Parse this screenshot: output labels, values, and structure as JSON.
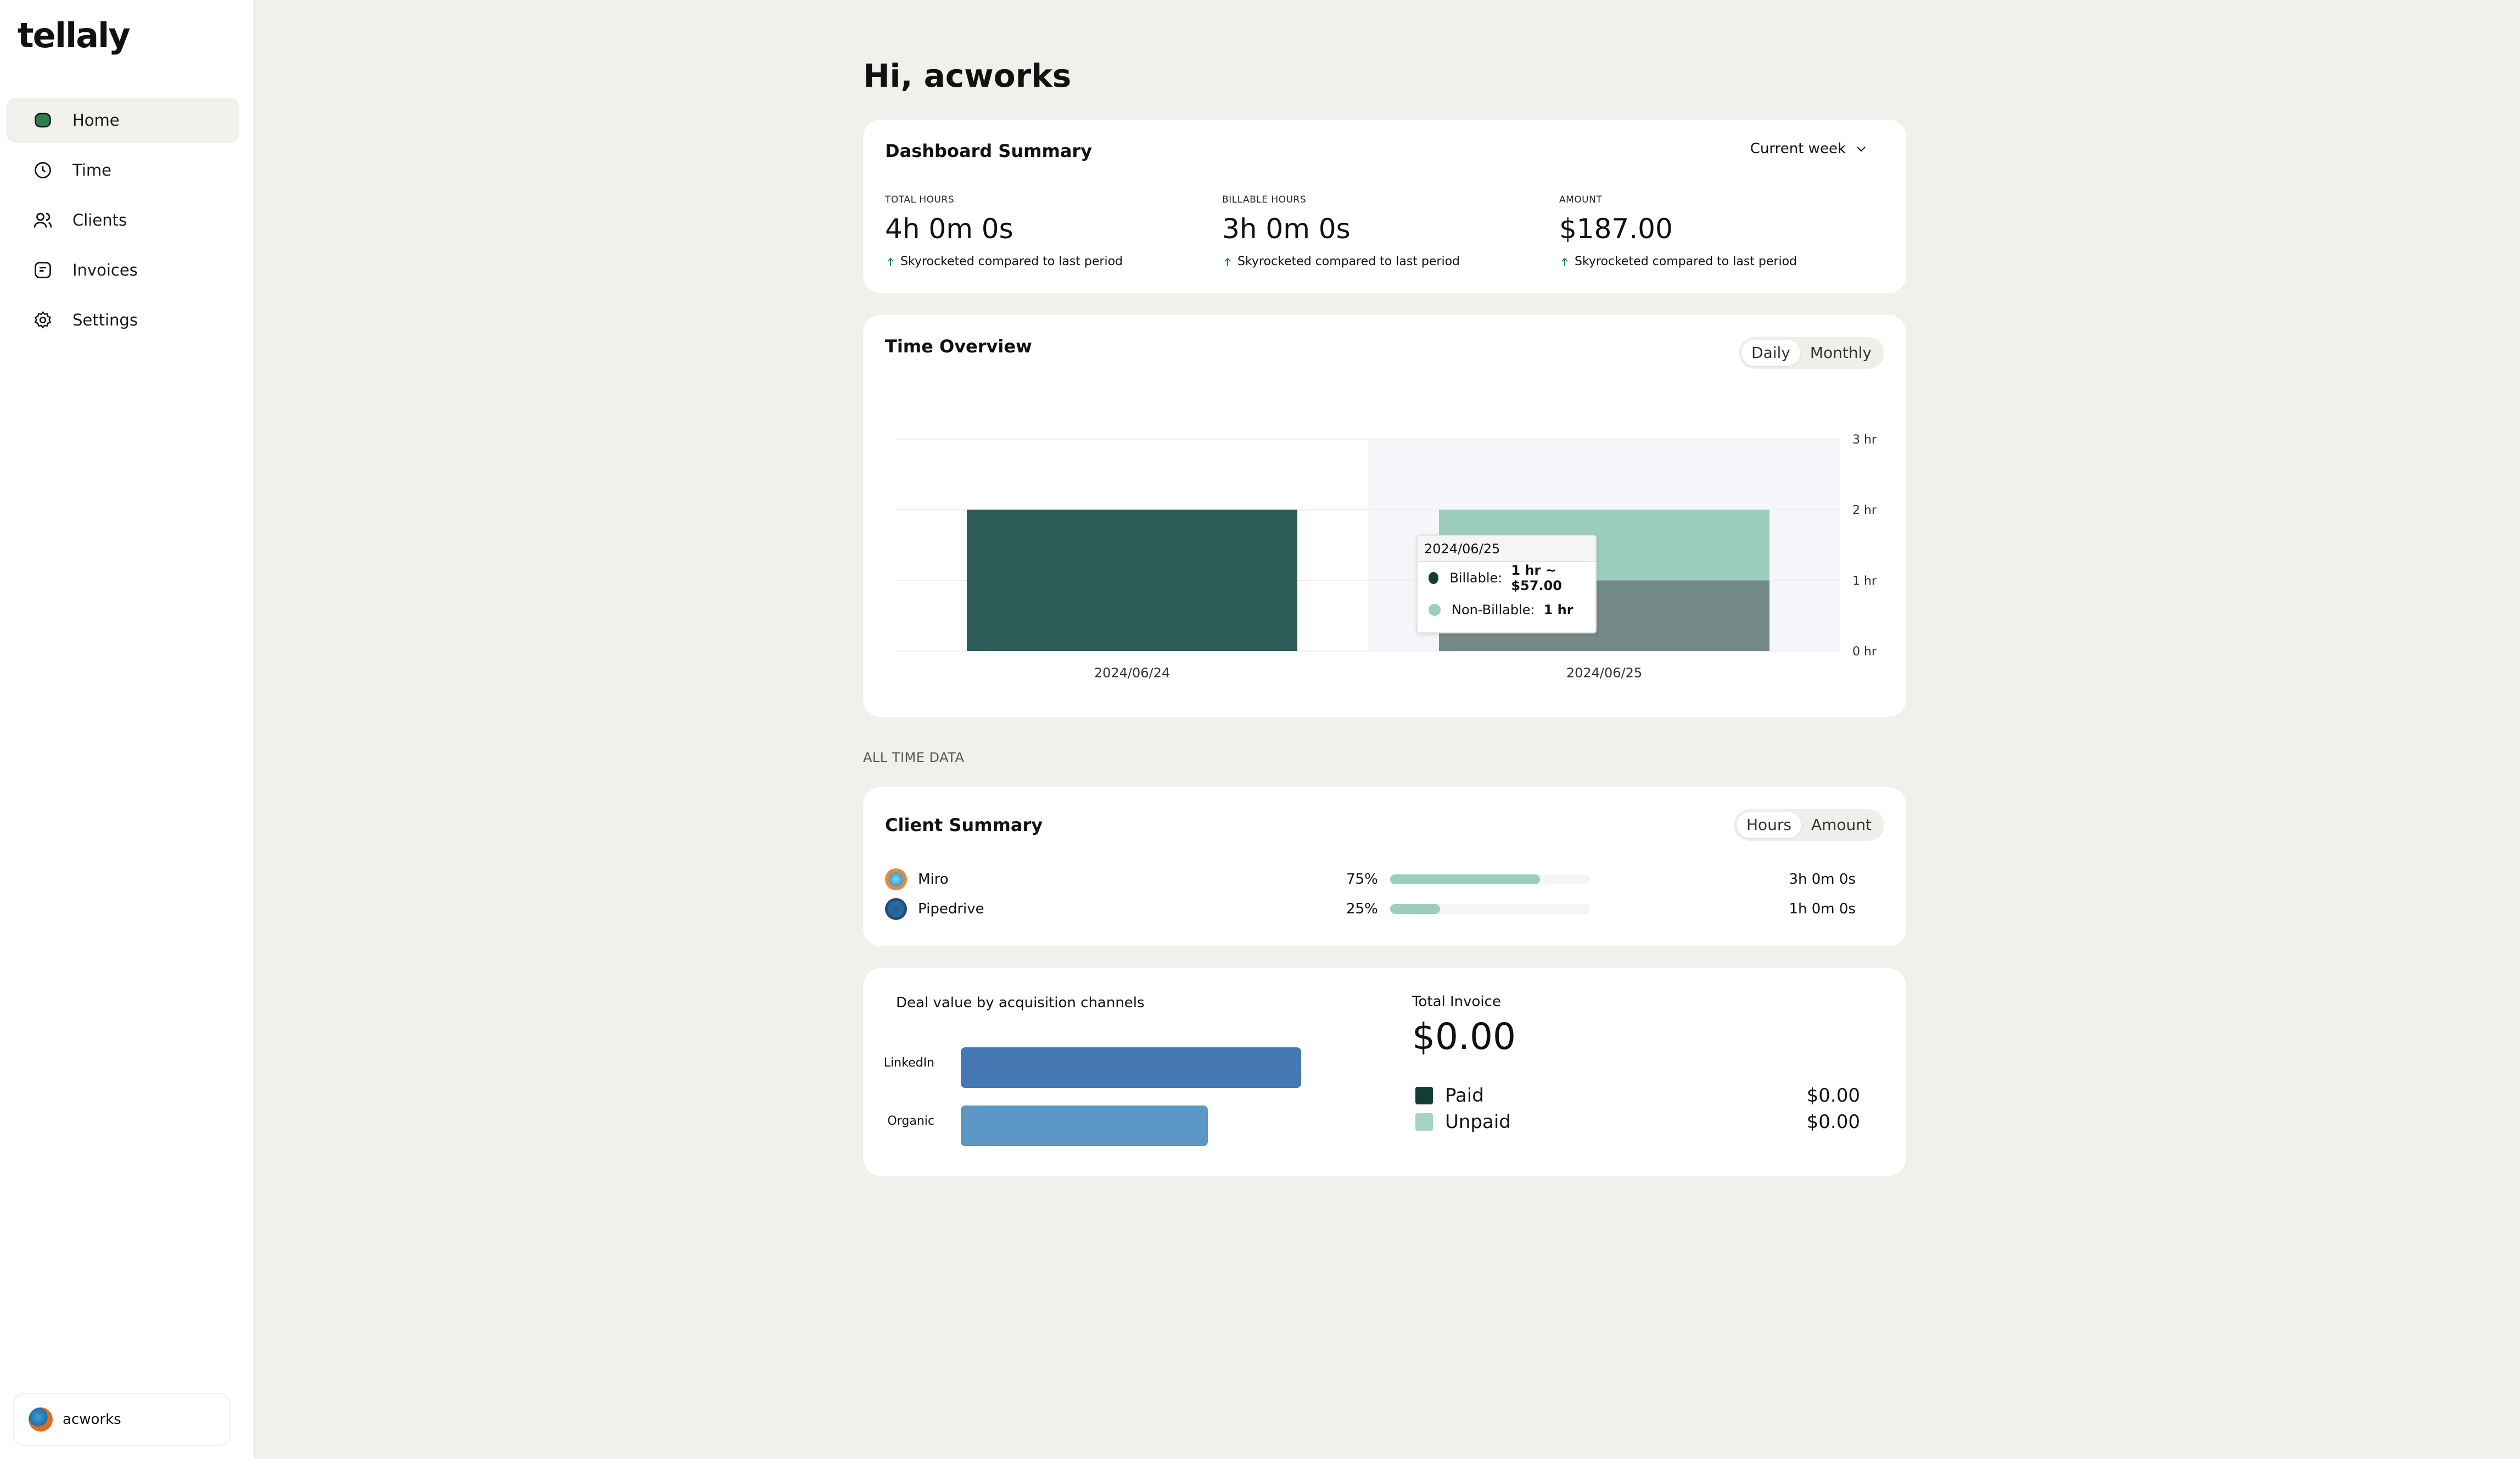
{
  "app": {
    "logo": "tellaly"
  },
  "sidebar": {
    "items": [
      {
        "label": "Home",
        "icon": "home-icon",
        "active": true
      },
      {
        "label": "Time",
        "icon": "clock-icon"
      },
      {
        "label": "Clients",
        "icon": "users-icon"
      },
      {
        "label": "Invoices",
        "icon": "invoice-icon"
      },
      {
        "label": "Settings",
        "icon": "gear-icon"
      }
    ],
    "user": {
      "name": "acworks"
    }
  },
  "greeting": "Hi, acworks",
  "summary": {
    "title": "Dashboard Summary",
    "period": "Current week",
    "stats": [
      {
        "label": "TOTAL HOURS",
        "value": "4h 0m 0s",
        "trend": "Skyrocketed compared to last period"
      },
      {
        "label": "BILLABLE HOURS",
        "value": "3h 0m 0s",
        "trend": "Skyrocketed compared to last period"
      },
      {
        "label": "AMOUNT",
        "value": "$187.00",
        "trend": "Skyrocketed compared to last period"
      }
    ],
    "trend_color": "#1a8a5a"
  },
  "overview": {
    "title": "Time Overview",
    "toggle": {
      "options": [
        "Daily",
        "Monthly"
      ],
      "selected": "Daily"
    },
    "tooltip": {
      "date": "2024/06/25",
      "billable_label": "Billable:",
      "billable_value": "1 hr ~ $57.00",
      "nonbillable_label": "Non-Billable:",
      "nonbillable_value": "1 hr"
    }
  },
  "chart_data": {
    "type": "bar",
    "stacked": true,
    "categories": [
      "2024/06/24",
      "2024/06/25"
    ],
    "series": [
      {
        "name": "Billable",
        "values": [
          2,
          1
        ],
        "color": "#2e5c59"
      },
      {
        "name": "Non-Billable",
        "values": [
          0,
          1
        ],
        "color": "#9dcdbd"
      }
    ],
    "ylim": [
      0,
      3
    ],
    "yticks": [
      "0 hr",
      "1 hr",
      "2 hr",
      "3 hr"
    ],
    "y_axis_position": "right",
    "highlighted_category": "2024/06/25",
    "grid": true
  },
  "all_time_label": "ALL TIME DATA",
  "client_summary": {
    "title": "Client Summary",
    "toggle": {
      "options": [
        "Hours",
        "Amount"
      ],
      "selected": "Hours"
    },
    "clients": [
      {
        "name": "Miro",
        "percent": "75%",
        "fraction": 0.75,
        "duration": "3h 0m 0s"
      },
      {
        "name": "Pipedrive",
        "percent": "25%",
        "fraction": 0.25,
        "duration": "1h 0m 0s"
      }
    ]
  },
  "deal_chart": {
    "title": "Deal value by acquisition channels",
    "channels": [
      {
        "name": "LinkedIn",
        "fraction": 1.0,
        "color": "#4577b2"
      },
      {
        "name": "Organic",
        "fraction": 0.725,
        "color": "#5b96c5"
      }
    ]
  },
  "invoice": {
    "title": "Total Invoice",
    "total": "$0.00",
    "rows": [
      {
        "label": "Paid",
        "amount": "$0.00",
        "color": "#123d34"
      },
      {
        "label": "Unpaid",
        "amount": "$0.00",
        "color": "#a7d3c3"
      }
    ]
  }
}
